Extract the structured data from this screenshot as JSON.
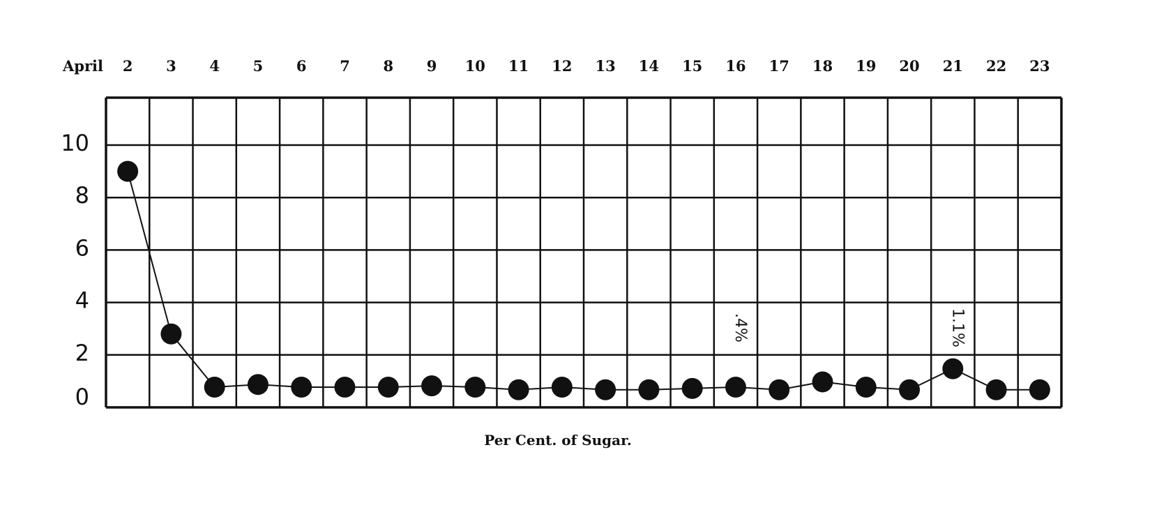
{
  "chart_data": {
    "type": "line",
    "title": "Per Cent. of Sugar.",
    "xlabel": "April",
    "ylabel": "",
    "categories": [
      "2",
      "3",
      "4",
      "5",
      "6",
      "7",
      "8",
      "9",
      "10",
      "11",
      "12",
      "13",
      "14",
      "15",
      "16",
      "17",
      "18",
      "19",
      "20",
      "21",
      "22",
      "23"
    ],
    "values": [
      9.0,
      2.8,
      0.4,
      0.5,
      0.4,
      0.4,
      0.4,
      0.45,
      0.4,
      0.3,
      0.4,
      0.3,
      0.3,
      0.35,
      0.4,
      0.3,
      0.6,
      0.4,
      0.3,
      1.1,
      0.3,
      0.3
    ],
    "yticks": [
      "0",
      "2",
      "4",
      "6",
      "8",
      "10"
    ],
    "ylim": [
      0,
      12
    ],
    "grid": true,
    "annotations": [
      {
        "category": "16",
        "text": ".4%"
      },
      {
        "category": "21",
        "text": "1.1%"
      }
    ],
    "colors": {
      "ink": "#111111",
      "background": "#ffffff"
    }
  }
}
